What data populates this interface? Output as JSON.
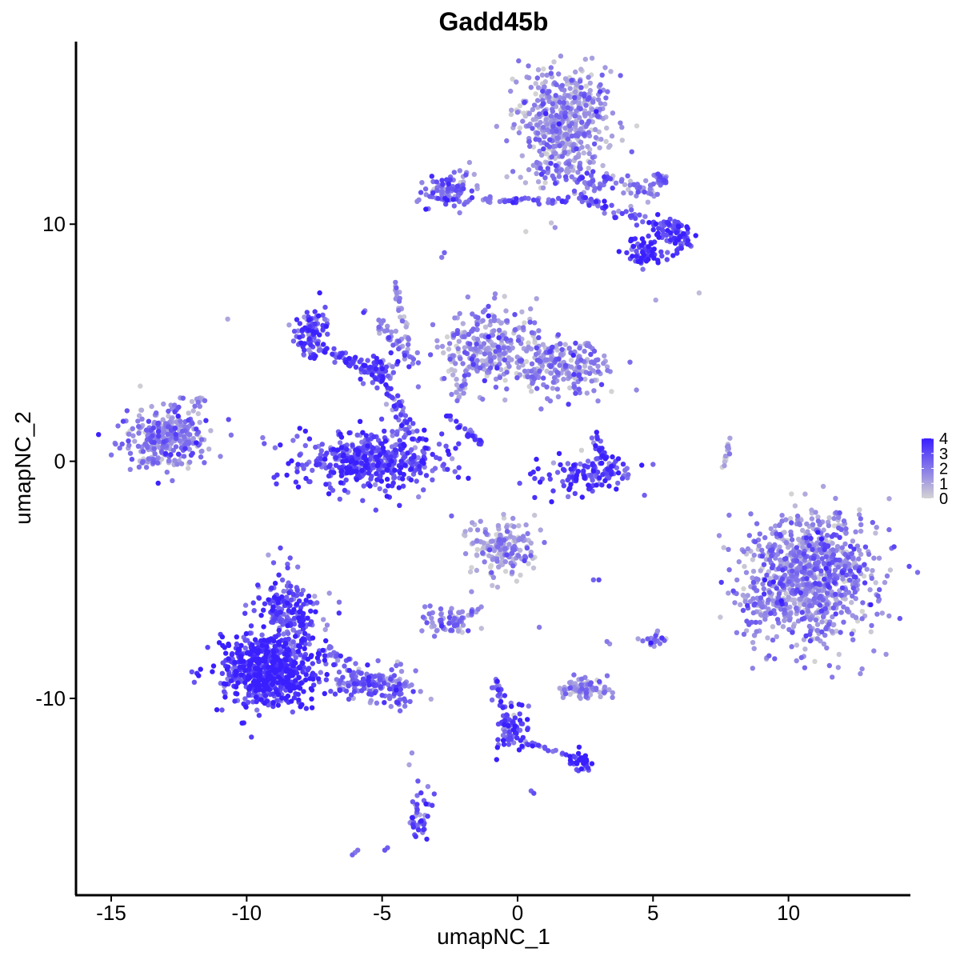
{
  "chart_data": {
    "type": "scatter",
    "title": "Gadd45b",
    "xlabel": "umapNC_1",
    "ylabel": "umapNC_2",
    "xlim": [
      -16.3,
      14.5
    ],
    "ylim": [
      -18.3,
      17.7
    ],
    "x_ticks": [
      -15,
      -10,
      -5,
      0,
      5,
      10
    ],
    "x_tick_labels": [
      "-15",
      "-10",
      "-5",
      "0",
      "5",
      "10"
    ],
    "y_ticks": [
      -10,
      0,
      10
    ],
    "y_tick_labels": [
      "-10",
      "0",
      "10"
    ],
    "grid": false,
    "legend": {
      "placement": "right",
      "type": "continuous",
      "range": [
        0,
        4
      ],
      "ticks": [
        0,
        1,
        2,
        3,
        4
      ],
      "tick_labels": [
        "0",
        "1",
        "2",
        "3",
        "4"
      ],
      "low_color": "#d3d3d3",
      "high_color": "#3a1fff"
    },
    "clusters": [
      {
        "cx": 1.7,
        "cy": 14.3,
        "sx": 0.9,
        "sy": 1.1,
        "n": 520,
        "expr": 1.3
      },
      {
        "cx": -2.6,
        "cy": 11.4,
        "sx": 0.5,
        "sy": 0.35,
        "n": 90,
        "expr": 2.3
      },
      {
        "cx": 5.8,
        "cy": 9.6,
        "sx": 0.35,
        "sy": 0.35,
        "n": 80,
        "expr": 3.1
      },
      {
        "cx": 4.6,
        "cy": 8.9,
        "sx": 0.35,
        "sy": 0.3,
        "n": 60,
        "expr": 3.6
      },
      {
        "cx": -7.6,
        "cy": 5.5,
        "sx": 0.35,
        "sy": 0.5,
        "n": 90,
        "expr": 3.0
      },
      {
        "cx": -5.0,
        "cy": 3.8,
        "sx": 0.3,
        "sy": 0.3,
        "n": 50,
        "expr": 3.0
      },
      {
        "cx": -1.0,
        "cy": 4.8,
        "sx": 0.9,
        "sy": 0.9,
        "n": 280,
        "expr": 1.4
      },
      {
        "cx": 1.8,
        "cy": 4.0,
        "sx": 0.9,
        "sy": 0.55,
        "n": 220,
        "expr": 1.6
      },
      {
        "cx": -13.0,
        "cy": 1.0,
        "sx": 0.8,
        "sy": 0.6,
        "n": 300,
        "expr": 1.8
      },
      {
        "cx": -5.5,
        "cy": 0.0,
        "sx": 1.3,
        "sy": 0.6,
        "n": 450,
        "expr": 3.0
      },
      {
        "cx": 2.6,
        "cy": -0.6,
        "sx": 0.8,
        "sy": 0.4,
        "n": 120,
        "expr": 3.2
      },
      {
        "cx": 10.8,
        "cy": -4.9,
        "sx": 1.2,
        "sy": 1.3,
        "n": 950,
        "expr": 1.6
      },
      {
        "cx": -0.5,
        "cy": -3.6,
        "sx": 0.6,
        "sy": 0.6,
        "n": 180,
        "expr": 1.1
      },
      {
        "cx": -9.2,
        "cy": -8.8,
        "sx": 0.9,
        "sy": 0.8,
        "n": 650,
        "expr": 3.5
      },
      {
        "cx": -8.5,
        "cy": -6.3,
        "sx": 0.6,
        "sy": 0.7,
        "n": 180,
        "expr": 2.8
      },
      {
        "cx": -5.3,
        "cy": -9.4,
        "sx": 0.8,
        "sy": 0.3,
        "n": 130,
        "expr": 2.3
      },
      {
        "cx": -2.6,
        "cy": -6.8,
        "sx": 0.4,
        "sy": 0.3,
        "n": 60,
        "expr": 1.6
      },
      {
        "cx": 2.5,
        "cy": -9.6,
        "sx": 0.5,
        "sy": 0.2,
        "n": 80,
        "expr": 1.4
      },
      {
        "cx": -0.2,
        "cy": -11.3,
        "sx": 0.3,
        "sy": 0.5,
        "n": 60,
        "expr": 3.0
      },
      {
        "cx": 2.4,
        "cy": -12.7,
        "sx": 0.2,
        "sy": 0.2,
        "n": 35,
        "expr": 3.5
      },
      {
        "cx": -3.6,
        "cy": -14.9,
        "sx": 0.2,
        "sy": 0.5,
        "n": 45,
        "expr": 2.6
      },
      {
        "cx": 5.1,
        "cy": -7.5,
        "sx": 0.2,
        "sy": 0.2,
        "n": 20,
        "expr": 2.0
      }
    ],
    "paths": [
      {
        "from": [
          1.0,
          12.2
        ],
        "to": [
          5.2,
          11.4
        ],
        "n": 90,
        "spread": 0.4,
        "expr": 2.0
      },
      {
        "from": [
          -1.8,
          11.0
        ],
        "to": [
          1.8,
          11.0
        ],
        "n": 45,
        "spread": 0.15,
        "expr": 2.2
      },
      {
        "from": [
          2.0,
          11.3
        ],
        "to": [
          5.5,
          9.8
        ],
        "n": 50,
        "spread": 0.25,
        "expr": 2.8
      },
      {
        "from": [
          5.0,
          11.8
        ],
        "to": [
          5.5,
          12.0
        ],
        "n": 25,
        "spread": 0.3,
        "expr": 2.5
      },
      {
        "from": [
          -7.2,
          4.7
        ],
        "to": [
          -5.2,
          3.8
        ],
        "n": 60,
        "spread": 0.25,
        "expr": 3.0
      },
      {
        "from": [
          -5.5,
          6.3
        ],
        "to": [
          -3.8,
          4.0
        ],
        "n": 40,
        "spread": 0.3,
        "expr": 2.0
      },
      {
        "from": [
          -4.5,
          7.5
        ],
        "to": [
          -4.0,
          5.0
        ],
        "n": 25,
        "spread": 0.12,
        "expr": 1.2
      },
      {
        "from": [
          -4.8,
          3.0
        ],
        "to": [
          -3.8,
          1.0
        ],
        "n": 45,
        "spread": 0.3,
        "expr": 2.6
      },
      {
        "from": [
          -2.6,
          1.9
        ],
        "to": [
          -1.3,
          0.7
        ],
        "n": 30,
        "spread": 0.1,
        "expr": 3.2
      },
      {
        "from": [
          -2.3,
          2.6
        ],
        "to": [
          -1.4,
          4.4
        ],
        "n": 25,
        "spread": 0.2,
        "expr": 1.5
      },
      {
        "from": [
          2.9,
          1.2
        ],
        "to": [
          3.4,
          -0.8
        ],
        "n": 35,
        "spread": 0.2,
        "expr": 3.0
      },
      {
        "from": [
          7.8,
          0.9
        ],
        "to": [
          7.6,
          -0.3
        ],
        "n": 15,
        "spread": 0.08,
        "expr": 1.0
      },
      {
        "from": [
          -7.2,
          -7.9
        ],
        "to": [
          -4.0,
          -10.4
        ],
        "n": 70,
        "spread": 0.4,
        "expr": 2.3
      },
      {
        "from": [
          -1.4,
          -6.2
        ],
        "to": [
          -2.6,
          -7.0
        ],
        "n": 15,
        "spread": 0.15,
        "expr": 1.8
      },
      {
        "from": [
          -0.8,
          -9.2
        ],
        "to": [
          -0.3,
          -11.8
        ],
        "n": 35,
        "spread": 0.15,
        "expr": 2.5
      },
      {
        "from": [
          0.2,
          -11.8
        ],
        "to": [
          2.4,
          -12.6
        ],
        "n": 25,
        "spread": 0.12,
        "expr": 2.7
      },
      {
        "from": [
          8.3,
          -5.6
        ],
        "to": [
          9.4,
          -6.6
        ],
        "n": 30,
        "spread": 0.3,
        "expr": 1.6
      },
      {
        "from": [
          -13.9,
          0.0
        ],
        "to": [
          -12.2,
          -0.1
        ],
        "n": 25,
        "spread": 0.15,
        "expr": 1.2
      },
      {
        "from": [
          -12.0,
          2.3
        ],
        "to": [
          -11.6,
          2.7
        ],
        "n": 10,
        "spread": 0.15,
        "expr": 1.0
      }
    ],
    "points": [
      [
        -10.7,
        6.0,
        1.0
      ],
      [
        -2.8,
        8.6,
        2.0
      ],
      [
        -2.7,
        8.8,
        2.5
      ],
      [
        6.7,
        7.1,
        0.5
      ],
      [
        -4.8,
        -16.3,
        2.6
      ],
      [
        -4.9,
        -16.4,
        2.8
      ],
      [
        -6.0,
        -16.5,
        2.0
      ],
      [
        -5.9,
        -16.4,
        2.2
      ],
      [
        -6.1,
        -16.6,
        2.5
      ],
      [
        0.5,
        -13.9,
        2.5
      ],
      [
        0.6,
        -14.0,
        3.0
      ],
      [
        -3.9,
        -12.3,
        1.5
      ],
      [
        -4.0,
        -12.8,
        1.0
      ],
      [
        2.8,
        -5.0,
        2.5
      ],
      [
        3.0,
        -5.0,
        3.0
      ],
      [
        3.3,
        -7.6,
        2.0
      ],
      [
        3.4,
        -7.7,
        1.5
      ],
      [
        0.8,
        -7.0,
        2.0
      ],
      [
        -1.7,
        -5.5,
        1.5
      ],
      [
        4.2,
        10.6,
        2.5
      ],
      [
        5.1,
        6.8,
        1.0
      ],
      [
        -1.6,
        12.1,
        1.0
      ],
      [
        1.2,
        12.8,
        0.5
      ]
    ]
  }
}
